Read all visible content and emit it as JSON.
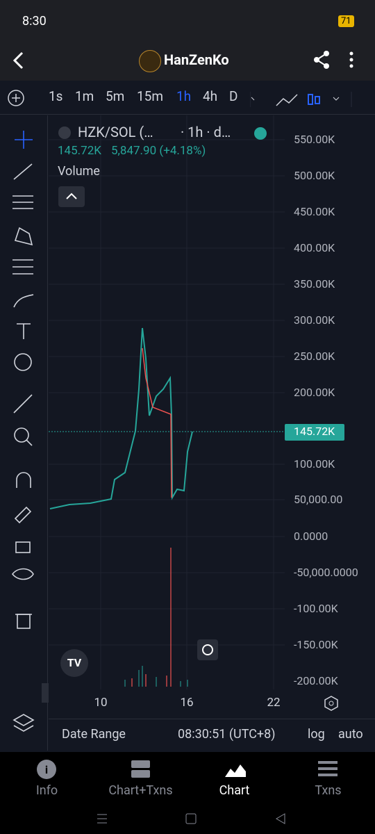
{
  "status_bar": {
    "time": "8:30",
    "battery": "71"
  },
  "header": {
    "title": "HanZenKo"
  },
  "toolbar": {
    "intervals": [
      "1s",
      "1m",
      "5m",
      "15m",
      "1h",
      "4h",
      "D"
    ],
    "active": 4
  },
  "legend": {
    "symbol": "HZK/SOL (…",
    "interval": "· 1h · d…",
    "price": "145.72K",
    "change": "5,847.90 (+4.18%)",
    "volume_label": "Volume"
  },
  "y_axis": {
    "labels": [
      "550.00K",
      "500.00K",
      "450.00K",
      "400.00K",
      "350.00K",
      "300.00K",
      "250.00K",
      "200.00K",
      "100.00K",
      "50,000.00",
      "0.0000",
      "-50,000.0000",
      "-100.00K",
      "-150.00K",
      "-200.00K"
    ],
    "current_price": "145.72K"
  },
  "x_axis": {
    "labels": [
      "10",
      "16",
      "22"
    ]
  },
  "footer_bar": {
    "date_range": "Date Range",
    "time": "08:30:51 (UTC+8)",
    "log": "log",
    "auto": "auto"
  },
  "nav": {
    "items": [
      "Info",
      "Chart+Txns",
      "Chart",
      "Txns"
    ],
    "active": 2
  }
}
